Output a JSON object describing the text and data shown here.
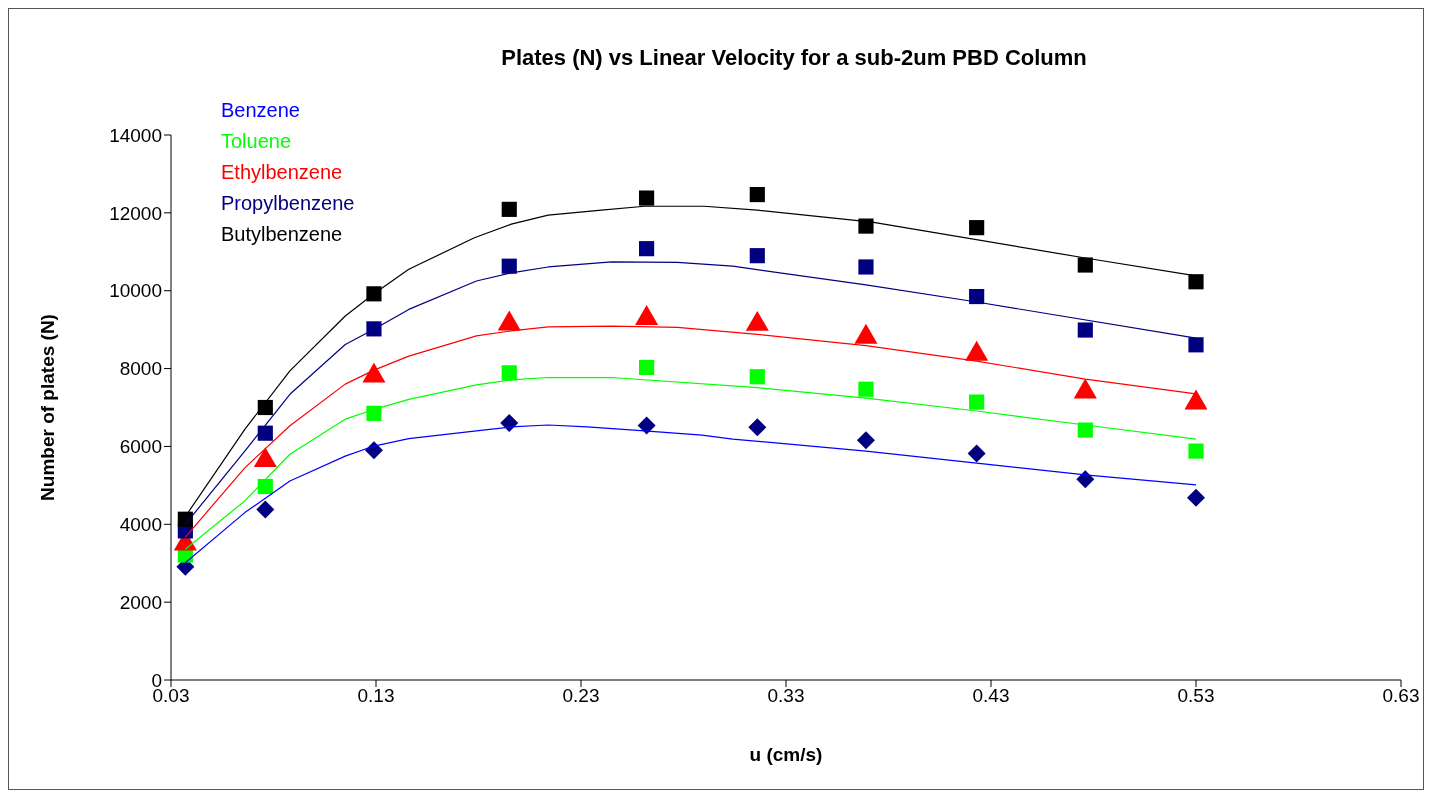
{
  "chart_data": {
    "type": "scatter",
    "title": "Plates (N) vs Linear Velocity for a sub-2um PBD Column",
    "xlabel": "u (cm/s)",
    "ylabel": "Number of plates (N)",
    "x": [
      0.037,
      0.076,
      0.129,
      0.195,
      0.262,
      0.316,
      0.369,
      0.423,
      0.476,
      0.53
    ],
    "series": [
      {
        "color": "#000080",
        "marker": "diamond",
        "values": [
          2910,
          4380,
          5900,
          6600,
          6540,
          6490,
          6160,
          5820,
          5160,
          4680
        ]
      },
      {
        "color": "#00ff00",
        "marker": "square",
        "values": [
          3210,
          4970,
          6850,
          7890,
          8030,
          7790,
          7470,
          7140,
          6420,
          5880
        ]
      },
      {
        "color": "#ff0000",
        "marker": "triangle",
        "values": [
          3500,
          5640,
          7810,
          9150,
          9290,
          9140,
          8810,
          8370,
          7400,
          7120
        ]
      },
      {
        "color": "#000080",
        "marker": "square",
        "values": [
          3830,
          6340,
          9020,
          10630,
          11080,
          10900,
          10610,
          9850,
          8990,
          8610
        ]
      },
      {
        "color": "#000000",
        "marker": "square",
        "values": [
          4130,
          7000,
          9920,
          12090,
          12380,
          12470,
          11660,
          11620,
          10660,
          10230
        ]
      },
      {
        "type": "line",
        "name": "Benzene",
        "color": "#0000ff",
        "x": [
          0.037,
          0.066,
          0.088,
          0.115,
          0.129,
          0.146,
          0.179,
          0.196,
          0.214,
          0.233,
          0.261,
          0.289,
          0.304,
          0.369,
          0.423,
          0.476,
          0.53
        ],
        "values": [
          3010,
          4300,
          5110,
          5750,
          6010,
          6200,
          6400,
          6500,
          6550,
          6500,
          6400,
          6290,
          6190,
          5880,
          5570,
          5270,
          5010
        ]
      },
      {
        "type": "line",
        "name": "Toluene",
        "color": "#00ff00",
        "x": [
          0.037,
          0.066,
          0.088,
          0.115,
          0.129,
          0.146,
          0.179,
          0.196,
          0.214,
          0.245,
          0.316,
          0.369,
          0.423,
          0.476,
          0.53
        ],
        "values": [
          3360,
          4600,
          5800,
          6700,
          6950,
          7210,
          7580,
          7710,
          7770,
          7770,
          7510,
          7240,
          6910,
          6550,
          6190
        ]
      },
      {
        "type": "line",
        "name": "Ethylbenzene",
        "color": "#ff0000",
        "x": [
          0.037,
          0.066,
          0.088,
          0.115,
          0.129,
          0.146,
          0.179,
          0.196,
          0.214,
          0.245,
          0.277,
          0.316,
          0.369,
          0.423,
          0.476,
          0.53
        ],
        "values": [
          3670,
          5450,
          6530,
          7600,
          7960,
          8320,
          8840,
          8970,
          9070,
          9090,
          9060,
          8880,
          8590,
          8190,
          7730,
          7350
        ]
      },
      {
        "type": "line",
        "name": "Propylbenzene",
        "color": "#000080",
        "x": [
          0.037,
          0.066,
          0.088,
          0.115,
          0.129,
          0.146,
          0.179,
          0.196,
          0.214,
          0.245,
          0.277,
          0.304,
          0.369,
          0.423,
          0.53
        ],
        "values": [
          4000,
          5880,
          7340,
          8620,
          9010,
          9520,
          10250,
          10460,
          10610,
          10740,
          10730,
          10630,
          10150,
          9710,
          8780
        ]
      },
      {
        "type": "line",
        "name": "Butylbenzene",
        "color": "#000000",
        "x": [
          0.037,
          0.066,
          0.088,
          0.115,
          0.129,
          0.146,
          0.178,
          0.196,
          0.214,
          0.24,
          0.261,
          0.29,
          0.316,
          0.372,
          0.476,
          0.53
        ],
        "values": [
          4200,
          6440,
          7940,
          9350,
          9920,
          10550,
          11360,
          11710,
          11940,
          12070,
          12170,
          12170,
          12070,
          11760,
          10840,
          10380
        ]
      }
    ],
    "xlim": [
      0.03,
      0.63
    ],
    "xticks": [
      0.03,
      0.13,
      0.23,
      0.33,
      0.43,
      0.53,
      0.63
    ],
    "ylim": [
      0,
      14000
    ],
    "yticks": [
      0,
      2000,
      4000,
      6000,
      8000,
      10000,
      12000,
      14000
    ],
    "grid": false,
    "legend": "top left",
    "line_style": "solid"
  }
}
